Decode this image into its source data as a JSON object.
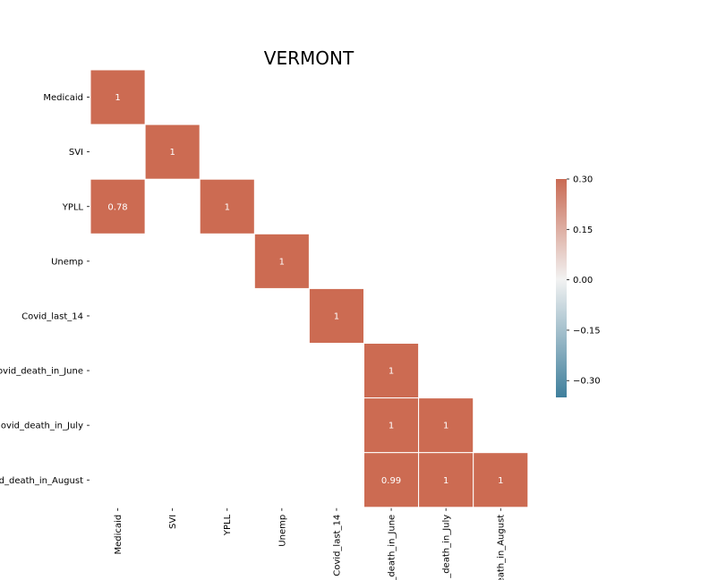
{
  "chart_data": {
    "type": "heatmap",
    "title": "VERMONT",
    "xlabel": "",
    "ylabel": "",
    "rows": [
      "Medicaid",
      "SVI",
      "YPLL",
      "Unemp",
      "Covid_last_14",
      "Covid_death_in_June",
      "Covid_death_in_July",
      "Covid_death_in_August"
    ],
    "columns": [
      "Medicaid",
      "SVI",
      "YPLL",
      "Unemp",
      "Covid_last_14",
      "Covid_death_in_June",
      "Covid_death_in_July",
      "Covid_death_in_August"
    ],
    "row_labels_visible": [
      "Medicaid",
      "SVI",
      "YPLL",
      "Unemp",
      "Covid_last_14",
      "ovid_death_in_June",
      "ovid_death_in_July",
      "d_death_in_August"
    ],
    "column_labels_visible": [
      "Medicaid",
      "SVI",
      "YPLL",
      "Unemp",
      "Covid_last_14",
      "_death_in_June",
      "_death_in_July",
      "eath_in_August"
    ],
    "cells": [
      {
        "row": "Medicaid",
        "column": "Medicaid",
        "value": 1,
        "label": "1"
      },
      {
        "row": "SVI",
        "column": "SVI",
        "value": 1,
        "label": "1"
      },
      {
        "row": "YPLL",
        "column": "Medicaid",
        "value": 0.78,
        "label": "0.78"
      },
      {
        "row": "YPLL",
        "column": "YPLL",
        "value": 1,
        "label": "1"
      },
      {
        "row": "Unemp",
        "column": "Unemp",
        "value": 1,
        "label": "1"
      },
      {
        "row": "Covid_last_14",
        "column": "Covid_last_14",
        "value": 1,
        "label": "1"
      },
      {
        "row": "Covid_death_in_June",
        "column": "Covid_death_in_June",
        "value": 1,
        "label": "1"
      },
      {
        "row": "Covid_death_in_July",
        "column": "Covid_death_in_June",
        "value": 1,
        "label": "1"
      },
      {
        "row": "Covid_death_in_July",
        "column": "Covid_death_in_July",
        "value": 1,
        "label": "1"
      },
      {
        "row": "Covid_death_in_August",
        "column": "Covid_death_in_June",
        "value": 0.99,
        "label": "0.99"
      },
      {
        "row": "Covid_death_in_August",
        "column": "Covid_death_in_July",
        "value": 1,
        "label": "1"
      },
      {
        "row": "Covid_death_in_August",
        "column": "Covid_death_in_August",
        "value": 1,
        "label": "1"
      }
    ],
    "colorbar": {
      "range": [
        -0.35,
        0.3
      ],
      "ticks": [
        0.3,
        0.15,
        0.0,
        -0.15,
        -0.3
      ],
      "tick_labels": [
        "0.30",
        "0.15",
        "0.00",
        "−0.15",
        "−0.30"
      ],
      "colormap": "diverging blue-white-red",
      "color_low": "#3f7f9c",
      "color_mid": "#f2f2f2",
      "color_high": "#c96a53"
    },
    "cell_color": "#cc6b52",
    "legend_position": "right",
    "grid": false
  }
}
